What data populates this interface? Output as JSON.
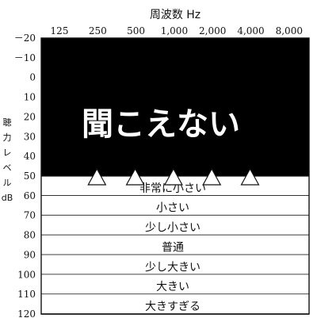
{
  "chart_data": {
    "type": "heatmap",
    "title": "周波数 Hz",
    "xlabel": "周波数 Hz",
    "ylabel": "聴力レベル dB",
    "ylabel_chars": [
      "聴",
      "力",
      "レ",
      "ベ",
      "ル",
      "dB"
    ],
    "x_ticks": [
      "125",
      "250",
      "500",
      "1,000",
      "2,000",
      "4,000",
      "8,000"
    ],
    "y_ticks": [
      -20,
      -10,
      0,
      10,
      20,
      30,
      40,
      50,
      60,
      70,
      80,
      90,
      100,
      110,
      120
    ],
    "y_tick_labels": [
      "－20",
      "－10",
      "0",
      "10",
      "20",
      "30",
      "40",
      "50",
      "60",
      "70",
      "80",
      "90",
      "100",
      "110",
      "120"
    ],
    "ylim": [
      -20,
      120
    ],
    "inaudible_region": {
      "label": "聞こえない",
      "from_db": -20,
      "to_db": 50,
      "color": "#000000"
    },
    "bands": [
      {
        "label": "非常に小さい",
        "from_db": 50,
        "to_db": 60
      },
      {
        "label": "小さい",
        "from_db": 60,
        "to_db": 70
      },
      {
        "label": "少し小さい",
        "from_db": 70,
        "to_db": 80
      },
      {
        "label": "普通",
        "from_db": 80,
        "to_db": 90
      },
      {
        "label": "少し大きい",
        "from_db": 90,
        "to_db": 100
      },
      {
        "label": "大きい",
        "from_db": 100,
        "to_db": 110
      },
      {
        "label": "大きすぎる",
        "from_db": 110,
        "to_db": 120
      }
    ],
    "markers": [
      {
        "x": "250",
        "db": 50
      },
      {
        "x": "500",
        "db": 50
      },
      {
        "x": "1,000",
        "db": 50
      },
      {
        "x": "2,000",
        "db": 50
      },
      {
        "x": "4,000",
        "db": 50
      }
    ]
  }
}
